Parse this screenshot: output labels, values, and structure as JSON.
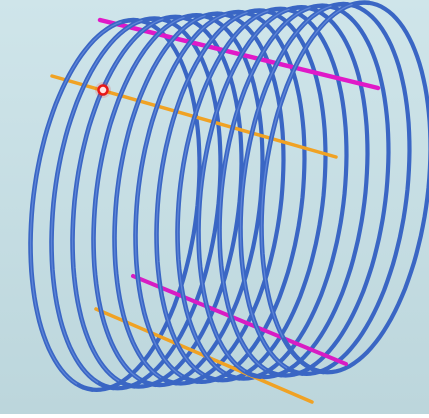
{
  "scene": {
    "background": "#c6dde3",
    "coil": {
      "color": "#3a66c4",
      "turns": 12
    },
    "rods": {
      "top_back_color": "#e019c8",
      "top_front_color": "#f0a224",
      "bottom_back_color": "#d81cc4",
      "bottom_front_color": "#f0a224"
    },
    "marker": {
      "color": "#e81818"
    }
  }
}
